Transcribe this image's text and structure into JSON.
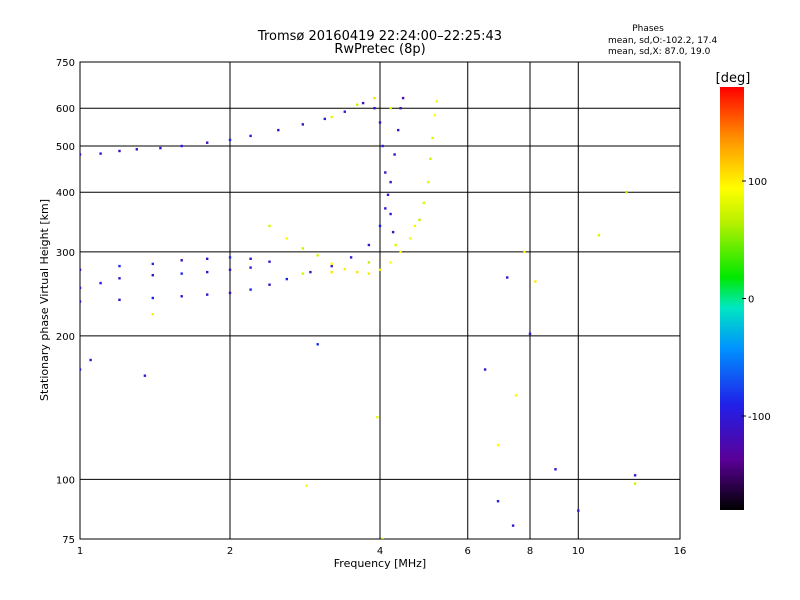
{
  "chart_data": {
    "type": "scatter",
    "title": "Tromsø 20160419 22:24:00–22:25:43",
    "subtitle": "RwPretec (8p)",
    "xlabel": "Frequency [MHz]",
    "ylabel": "Stationary phase Virtual Height [km]",
    "x_scale": "log2",
    "y_scale": "log",
    "xlim": [
      1,
      16
    ],
    "ylim": [
      75,
      750
    ],
    "x_ticks": [
      1,
      2,
      4,
      6,
      8,
      10,
      16
    ],
    "y_ticks": [
      75,
      100,
      200,
      300,
      400,
      500,
      600,
      750
    ],
    "grid": true,
    "legend_title": "Phases",
    "legend_lines": [
      "mean, sd,O:-102.2, 17.4",
      "mean, sd,X:  87.0, 19.0"
    ],
    "colorbar": {
      "label": "[deg]",
      "range": [
        -180,
        180
      ],
      "ticks": [
        100,
        0,
        -100
      ]
    },
    "series": [
      {
        "mode": "O",
        "phase_mean": -102.2,
        "phase_sd": 17.4,
        "points": [
          [
            1.0,
            480
          ],
          [
            1.1,
            482
          ],
          [
            1.2,
            488
          ],
          [
            1.3,
            492
          ],
          [
            1.45,
            495
          ],
          [
            1.6,
            500
          ],
          [
            1.8,
            508
          ],
          [
            2.0,
            515
          ],
          [
            2.2,
            525
          ],
          [
            2.5,
            540
          ],
          [
            2.8,
            555
          ],
          [
            3.1,
            570
          ],
          [
            3.4,
            590
          ],
          [
            3.7,
            615
          ],
          [
            3.9,
            600
          ],
          [
            4.0,
            560
          ],
          [
            4.05,
            500
          ],
          [
            4.1,
            440
          ],
          [
            4.15,
            395
          ],
          [
            4.2,
            360
          ],
          [
            4.25,
            330
          ],
          [
            1.0,
            275
          ],
          [
            1.2,
            280
          ],
          [
            1.4,
            283
          ],
          [
            1.6,
            288
          ],
          [
            1.8,
            290
          ],
          [
            2.0,
            292
          ],
          [
            2.2,
            290
          ],
          [
            2.4,
            286
          ],
          [
            1.0,
            252
          ],
          [
            1.1,
            258
          ],
          [
            1.2,
            264
          ],
          [
            1.4,
            268
          ],
          [
            1.6,
            270
          ],
          [
            1.8,
            272
          ],
          [
            2.0,
            275
          ],
          [
            2.2,
            278
          ],
          [
            1.0,
            236
          ],
          [
            1.2,
            238
          ],
          [
            1.4,
            240
          ],
          [
            1.6,
            242
          ],
          [
            1.8,
            244
          ],
          [
            2.0,
            246
          ],
          [
            2.2,
            250
          ],
          [
            2.4,
            256
          ],
          [
            2.6,
            263
          ],
          [
            2.9,
            272
          ],
          [
            3.2,
            280
          ],
          [
            3.5,
            292
          ],
          [
            3.8,
            310
          ],
          [
            4.0,
            340
          ],
          [
            4.1,
            370
          ],
          [
            4.2,
            420
          ],
          [
            4.28,
            480
          ],
          [
            4.35,
            540
          ],
          [
            4.4,
            600
          ],
          [
            4.45,
            630
          ],
          [
            1.05,
            178
          ],
          [
            1.0,
            170
          ],
          [
            1.35,
            165
          ],
          [
            3.0,
            192
          ],
          [
            8.0,
            202
          ],
          [
            7.2,
            265
          ],
          [
            9.0,
            105
          ],
          [
            10.0,
            86
          ],
          [
            6.9,
            90
          ],
          [
            7.4,
            80
          ],
          [
            6.5,
            170
          ],
          [
            13.0,
            102
          ]
        ]
      },
      {
        "mode": "X",
        "phase_mean": 87.0,
        "phase_sd": 19.0,
        "points": [
          [
            2.4,
            340
          ],
          [
            2.6,
            320
          ],
          [
            2.8,
            305
          ],
          [
            3.0,
            295
          ],
          [
            3.2,
            283
          ],
          [
            3.4,
            276
          ],
          [
            3.6,
            272
          ],
          [
            3.8,
            270
          ],
          [
            4.0,
            275
          ],
          [
            4.2,
            285
          ],
          [
            4.4,
            300
          ],
          [
            4.6,
            320
          ],
          [
            4.8,
            350
          ],
          [
            4.9,
            380
          ],
          [
            5.0,
            420
          ],
          [
            5.05,
            470
          ],
          [
            5.1,
            520
          ],
          [
            5.15,
            580
          ],
          [
            5.2,
            620
          ],
          [
            2.8,
            270
          ],
          [
            3.2,
            272
          ],
          [
            3.8,
            285
          ],
          [
            4.3,
            310
          ],
          [
            4.7,
            340
          ],
          [
            3.2,
            575
          ],
          [
            3.6,
            610
          ],
          [
            3.9,
            630
          ],
          [
            4.2,
            600
          ],
          [
            1.4,
            222
          ],
          [
            2.85,
            97
          ],
          [
            3.95,
            135
          ],
          [
            4.05,
            75
          ],
          [
            7.8,
            300
          ],
          [
            8.2,
            260
          ],
          [
            11.0,
            325
          ],
          [
            12.5,
            400
          ],
          [
            13.0,
            98
          ],
          [
            6.9,
            118
          ],
          [
            7.5,
            150
          ]
        ]
      }
    ]
  }
}
